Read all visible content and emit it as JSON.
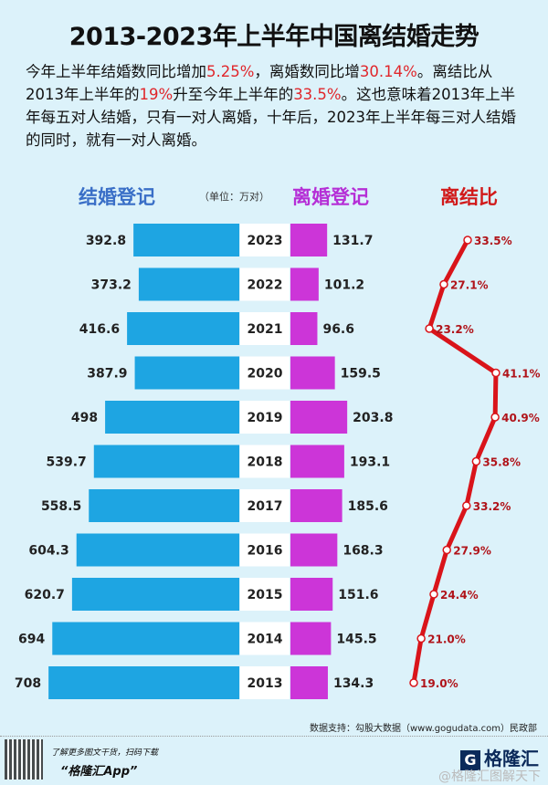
{
  "title": "2013-2023年上半年中国离结婚走势",
  "intro": {
    "p1": "今年上半年结婚数同比增加",
    "v1": "5.25%",
    "p2": "，离婚数同比增",
    "v2": "30.14%",
    "p3": "。离结比从2013年上半年的",
    "v3": "19%",
    "p4": "升至今年上半年的",
    "v4": "33.5%",
    "p5": "。这也意味着2013年上半年每五对人结婚，只有一对人离婚，十年后，2023年上半年每三对人结婚的同时，就有一对人离婚。"
  },
  "headers": {
    "marriage": "结婚登记",
    "unit": "（单位：万对）",
    "divorce": "离婚登记",
    "ratio": "离结比"
  },
  "footer": {
    "source": "数据支持：勾股大数据（www.gogudata.com）民政部",
    "scan": "了解更多图文干货，扫码下载",
    "app": "“格隆汇App”",
    "logo": "格隆汇",
    "logo_mark": "G",
    "weibo": "@格隆汇图解天下"
  },
  "colors": {
    "marriage": "#1ea5e2",
    "divorce": "#cc35d8",
    "ratio": "#d9141a"
  },
  "chart_data": {
    "type": "bar",
    "categories": [
      "2023",
      "2022",
      "2021",
      "2020",
      "2019",
      "2018",
      "2017",
      "2016",
      "2015",
      "2014",
      "2013"
    ],
    "series": [
      {
        "name": "结婚登记",
        "unit": "万对",
        "values": [
          392.8,
          373.2,
          416.6,
          387.9,
          498,
          539.7,
          558.5,
          604.3,
          620.7,
          694,
          708
        ]
      },
      {
        "name": "离婚登记",
        "unit": "万对",
        "values": [
          131.7,
          101.2,
          96.6,
          159.5,
          203.8,
          193.1,
          185.6,
          168.3,
          151.6,
          145.5,
          134.3
        ]
      },
      {
        "name": "离结比",
        "type": "line",
        "values": [
          33.5,
          27.1,
          23.2,
          41.1,
          40.9,
          35.8,
          33.2,
          27.9,
          24.4,
          21.0,
          19.0
        ]
      }
    ]
  }
}
